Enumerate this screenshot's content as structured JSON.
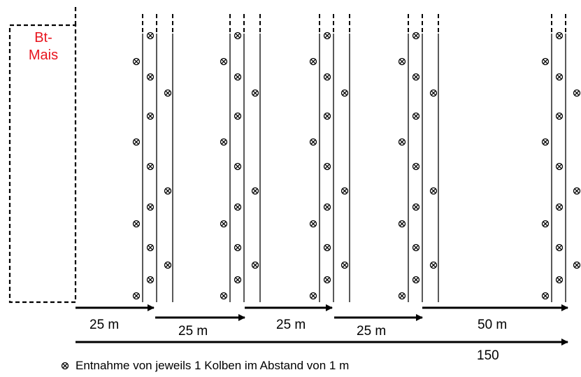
{
  "field": {
    "line1": "Bt-",
    "line2": "Mais"
  },
  "distances": [
    {
      "label": "25 m"
    },
    {
      "label": "25 m"
    },
    {
      "label": "25 m"
    },
    {
      "label": "25 m"
    },
    {
      "label": "50 m"
    }
  ],
  "total": {
    "label": "150"
  },
  "legend": {
    "text": "Entnahme von jeweils 1 Kolben im Abstand von 1 m",
    "symbol": "sample-point-icon"
  },
  "colors": {
    "field_label": "#e8141e",
    "lines": "#000000"
  }
}
